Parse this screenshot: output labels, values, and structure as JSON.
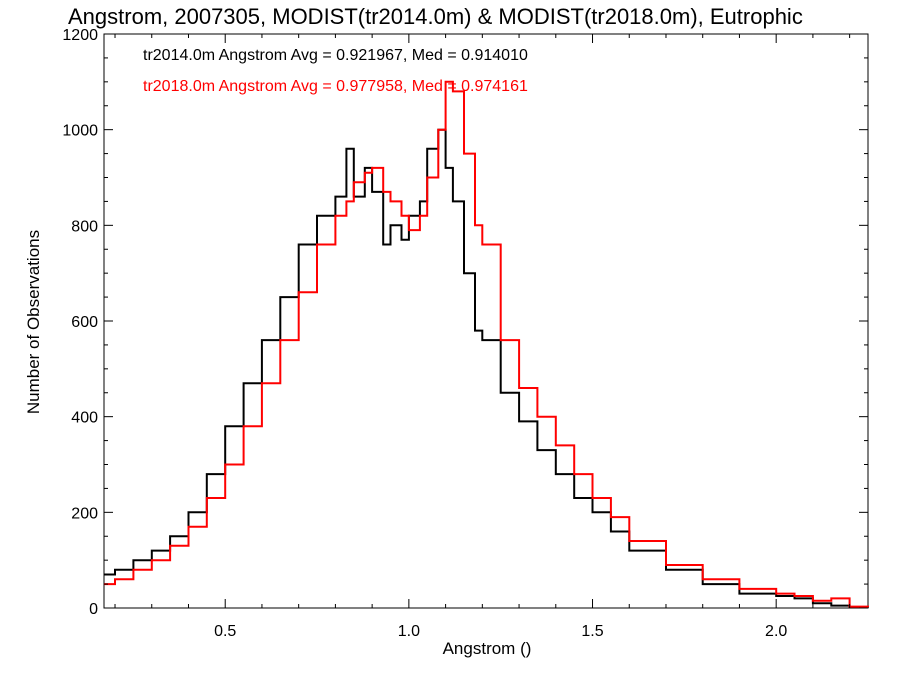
{
  "chart_data": {
    "type": "line",
    "step": true,
    "title": "Angstrom, 2007305, MODIST(tr2014.0m) & MODIST(tr2018.0m), Eutrophic",
    "xlabel": "Angstrom ()",
    "ylabel": "Number of Observations",
    "xlim": [
      0.17,
      2.25
    ],
    "ylim": [
      0,
      1200
    ],
    "xticks": [
      0.5,
      1.0,
      1.5,
      2.0
    ],
    "xtick_labels": [
      "0.5",
      "1.0",
      "1.5",
      "2.0"
    ],
    "yticks": [
      0,
      200,
      400,
      600,
      800,
      1000,
      1200
    ],
    "ytick_labels": [
      "0",
      "200",
      "400",
      "600",
      "800",
      "1000",
      "1200"
    ],
    "grid": false,
    "legend": "top-left annotations",
    "annotations": [
      {
        "text": "tr2014.0m Angstrom Avg = 0.921967, Med = 0.914010",
        "color": "#000000"
      },
      {
        "text": "tr2018.0m Angstrom Avg = 0.977958, Med = 0.974161",
        "color": "#ff0000"
      }
    ],
    "series": [
      {
        "color": "#000000",
        "x": [
          0.17,
          0.2,
          0.25,
          0.3,
          0.35,
          0.4,
          0.45,
          0.5,
          0.55,
          0.6,
          0.65,
          0.7,
          0.75,
          0.8,
          0.83,
          0.85,
          0.88,
          0.9,
          0.93,
          0.95,
          0.98,
          1.0,
          1.03,
          1.05,
          1.08,
          1.1,
          1.12,
          1.15,
          1.18,
          1.2,
          1.25,
          1.3,
          1.35,
          1.4,
          1.45,
          1.5,
          1.55,
          1.6,
          1.7,
          1.8,
          1.9,
          2.0,
          2.05,
          2.1,
          2.15,
          2.2,
          2.25
        ],
        "y": [
          70,
          80,
          100,
          120,
          150,
          200,
          280,
          380,
          470,
          560,
          650,
          760,
          820,
          860,
          960,
          860,
          920,
          870,
          760,
          800,
          770,
          820,
          850,
          960,
          1000,
          920,
          850,
          700,
          580,
          560,
          450,
          390,
          330,
          280,
          230,
          200,
          160,
          120,
          80,
          50,
          30,
          25,
          20,
          10,
          5,
          2,
          1
        ]
      },
      {
        "color": "#ff0000",
        "x": [
          0.17,
          0.2,
          0.25,
          0.3,
          0.35,
          0.4,
          0.45,
          0.5,
          0.55,
          0.6,
          0.65,
          0.7,
          0.75,
          0.8,
          0.83,
          0.85,
          0.88,
          0.9,
          0.93,
          0.95,
          0.98,
          1.0,
          1.03,
          1.05,
          1.08,
          1.1,
          1.12,
          1.15,
          1.18,
          1.2,
          1.25,
          1.3,
          1.35,
          1.4,
          1.45,
          1.5,
          1.55,
          1.6,
          1.7,
          1.8,
          1.9,
          2.0,
          2.05,
          2.1,
          2.15,
          2.2,
          2.25
        ],
        "y": [
          50,
          60,
          80,
          100,
          130,
          170,
          230,
          300,
          380,
          470,
          560,
          660,
          760,
          820,
          850,
          890,
          910,
          920,
          870,
          850,
          820,
          790,
          820,
          900,
          1000,
          1100,
          1080,
          950,
          800,
          760,
          560,
          460,
          400,
          340,
          280,
          230,
          190,
          140,
          90,
          60,
          40,
          30,
          25,
          15,
          20,
          3,
          2
        ]
      }
    ]
  }
}
